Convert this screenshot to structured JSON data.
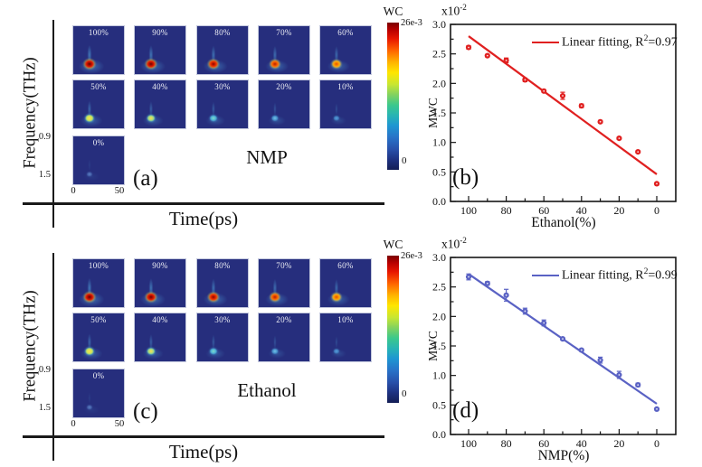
{
  "palette": {
    "red": "#e02020",
    "blue": "#5a62c4",
    "tile_background": "#262e7d"
  },
  "heatmap_panels": [
    {
      "corner_label": "(a)",
      "sample_label": "NMP",
      "x_axis_label": "Time(ps)",
      "y_axis_label": "Frequency(THz)",
      "freq_tick_top": "0.9",
      "freq_tick_bottom": "1.5",
      "time_tick_left": "0",
      "time_tick_right": "50",
      "colorbar": {
        "title": "WC",
        "max_label": "26e-3",
        "min_label": "0"
      },
      "tiles": [
        {
          "label": "100%",
          "conc": 100
        },
        {
          "label": "90%",
          "conc": 90
        },
        {
          "label": "80%",
          "conc": 80
        },
        {
          "label": "70%",
          "conc": 70
        },
        {
          "label": "60%",
          "conc": 60
        },
        {
          "label": "50%",
          "conc": 50
        },
        {
          "label": "40%",
          "conc": 40
        },
        {
          "label": "30%",
          "conc": 30
        },
        {
          "label": "20%",
          "conc": 20
        },
        {
          "label": "10%",
          "conc": 10
        },
        {
          "label": "0%",
          "conc": 0
        }
      ]
    },
    {
      "corner_label": "(c)",
      "sample_label": "Ethanol",
      "x_axis_label": "Time(ps)",
      "y_axis_label": "Frequency(THz)",
      "freq_tick_top": "0.9",
      "freq_tick_bottom": "1.5",
      "time_tick_left": "0",
      "time_tick_right": "50",
      "colorbar": {
        "title": "WC",
        "max_label": "26e-3",
        "min_label": "0"
      },
      "tiles": [
        {
          "label": "100%",
          "conc": 100
        },
        {
          "label": "90%",
          "conc": 90
        },
        {
          "label": "80%",
          "conc": 80
        },
        {
          "label": "70%",
          "conc": 70
        },
        {
          "label": "60%",
          "conc": 60
        },
        {
          "label": "50%",
          "conc": 50
        },
        {
          "label": "40%",
          "conc": 40
        },
        {
          "label": "30%",
          "conc": 30
        },
        {
          "label": "20%",
          "conc": 20
        },
        {
          "label": "10%",
          "conc": 10
        },
        {
          "label": "0%",
          "conc": 0
        }
      ]
    }
  ],
  "scatter_panels": [
    {
      "corner_label": "(b)",
      "scale_base": "x10",
      "scale_sup": "-2",
      "y_axis_label": "MWC",
      "x_axis_label": "Ethanol(%)",
      "legend_prefix": "Linear fitting, R",
      "legend_sup": "2",
      "legend_suffix": "=0.97"
    },
    {
      "corner_label": "(d)",
      "scale_base": "x10",
      "scale_sup": "-2",
      "y_axis_label": "MWC",
      "x_axis_label": "NMP(%)",
      "legend_prefix": "Linear fitting, R",
      "legend_sup": "2",
      "legend_suffix": "=0.99"
    }
  ],
  "chart_data": [
    {
      "type": "heatmap",
      "panel": "(a)",
      "sample": "NMP",
      "xlabel": "Time(ps)",
      "ylabel": "Frequency(THz)",
      "x_ticks": [
        0,
        50
      ],
      "y_ticks": [
        0.9,
        1.5
      ],
      "colorbar": {
        "label": "WC",
        "min": "0",
        "max": "26e-3"
      },
      "concentrations_percent": [
        100,
        90,
        80,
        70,
        60,
        50,
        40,
        30,
        20,
        10,
        0
      ]
    },
    {
      "type": "scatter",
      "panel": "(b)",
      "xlabel": "Ethanol(%)",
      "ylabel": "MWC",
      "y_scale_factor": "x10^-2",
      "x_axis_reversed": true,
      "xlim": [
        110,
        -10
      ],
      "ylim": [
        0,
        3.0
      ],
      "x_major_ticks": [
        100,
        80,
        60,
        40,
        20,
        0
      ],
      "y_major_ticks": [
        0,
        0.5,
        1.0,
        1.5,
        2.0,
        2.5,
        3.0
      ],
      "x": [
        100,
        90,
        80,
        70,
        60,
        50,
        40,
        30,
        20,
        10,
        0
      ],
      "y": [
        2.61,
        2.47,
        2.39,
        2.06,
        1.87,
        1.79,
        1.62,
        1.35,
        1.07,
        0.84,
        0.3
      ],
      "yerr": [
        0.03,
        0.02,
        0.04,
        0.03,
        0.02,
        0.06,
        0.03,
        0.02,
        0.02,
        0.02,
        0.02
      ],
      "fit_line": {
        "x": [
          100,
          0
        ],
        "y": [
          2.8,
          0.46
        ]
      },
      "legend": "Linear fitting, R^2=0.97",
      "r_squared": 0.97,
      "color": "#e02020"
    },
    {
      "type": "heatmap",
      "panel": "(c)",
      "sample": "Ethanol",
      "xlabel": "Time(ps)",
      "ylabel": "Frequency(THz)",
      "x_ticks": [
        0,
        50
      ],
      "y_ticks": [
        0.9,
        1.5
      ],
      "colorbar": {
        "label": "WC",
        "min": "0",
        "max": "26e-3"
      },
      "concentrations_percent": [
        100,
        90,
        80,
        70,
        60,
        50,
        40,
        30,
        20,
        10,
        0
      ]
    },
    {
      "type": "scatter",
      "panel": "(d)",
      "xlabel": "NMP(%)",
      "ylabel": "MWC",
      "y_scale_factor": "x10^-2",
      "x_axis_reversed": true,
      "xlim": [
        110,
        -10
      ],
      "ylim": [
        0,
        3.0
      ],
      "x_major_ticks": [
        100,
        80,
        60,
        40,
        20,
        0
      ],
      "y_major_ticks": [
        0,
        0.5,
        1.0,
        1.5,
        2.0,
        2.5,
        3.0
      ],
      "x": [
        100,
        90,
        80,
        70,
        60,
        50,
        40,
        30,
        20,
        10,
        0
      ],
      "y": [
        2.67,
        2.56,
        2.36,
        2.09,
        1.89,
        1.62,
        1.43,
        1.26,
        1.01,
        0.84,
        0.43
      ],
      "yerr": [
        0.05,
        0.03,
        0.1,
        0.05,
        0.05,
        0.02,
        0.02,
        0.05,
        0.06,
        0.03,
        0.02
      ],
      "fit_line": {
        "x": [
          100,
          0
        ],
        "y": [
          2.72,
          0.52
        ]
      },
      "legend": "Linear fitting, R^2=0.99",
      "r_squared": 0.99,
      "color": "#5a62c4"
    }
  ]
}
